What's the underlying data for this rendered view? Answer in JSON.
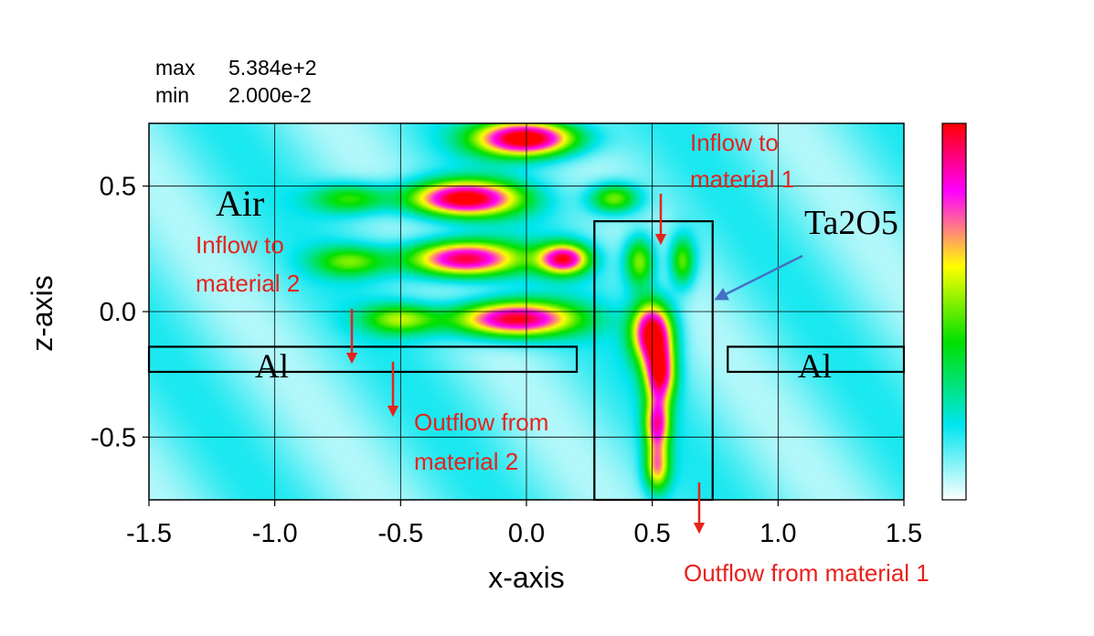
{
  "header": {
    "max_label": "max",
    "max_value": "5.384e+2",
    "min_label": "min",
    "min_value": "2.000e-2"
  },
  "chart_data": {
    "type": "heatmap",
    "title": "",
    "xlabel": "x-axis",
    "ylabel": "z-axis",
    "xlim": [
      -1.5,
      1.5
    ],
    "ylim": [
      -0.75,
      0.75
    ],
    "x_ticks": [
      "-1.5",
      "-1.0",
      "-0.5",
      "0.0",
      "0.5",
      "1.0",
      "1.5"
    ],
    "x_tick_values": [
      -1.5,
      -1.0,
      -0.5,
      0.0,
      0.5,
      1.0,
      1.5
    ],
    "y_ticks": [
      "0.5",
      "0.0",
      "-0.5"
    ],
    "y_tick_values": [
      0.5,
      0.0,
      -0.5
    ],
    "grid": true,
    "value_range": [
      0.02,
      538.4
    ],
    "colormap": [
      "#ffffff",
      "#00e5ee",
      "#00e000",
      "#ffff00",
      "#ff00ff",
      "#ff0000"
    ],
    "hotspots": [
      {
        "x": 0.0,
        "z": 0.69,
        "sx": 0.2,
        "sz": 0.07,
        "v": 1.0
      },
      {
        "x": -0.25,
        "z": 0.45,
        "sx": 0.22,
        "sz": 0.07,
        "v": 0.92
      },
      {
        "x": -0.25,
        "z": 0.21,
        "sx": 0.22,
        "sz": 0.07,
        "v": 0.88
      },
      {
        "x": 0.15,
        "z": 0.21,
        "sx": 0.1,
        "sz": 0.06,
        "v": 0.8
      },
      {
        "x": -0.05,
        "z": -0.03,
        "sx": 0.24,
        "sz": 0.07,
        "v": 0.9
      },
      {
        "x": 0.5,
        "z": -0.08,
        "sx": 0.08,
        "sz": 0.12,
        "v": 0.92
      },
      {
        "x": 0.53,
        "z": -0.25,
        "sx": 0.06,
        "sz": 0.12,
        "v": 0.8
      },
      {
        "x": 0.52,
        "z": -0.45,
        "sx": 0.05,
        "sz": 0.1,
        "v": 0.65
      },
      {
        "x": 0.52,
        "z": -0.62,
        "sx": 0.05,
        "sz": 0.1,
        "v": 0.55
      },
      {
        "x": 0.45,
        "z": 0.2,
        "sx": 0.06,
        "sz": 0.1,
        "v": 0.45
      },
      {
        "x": 0.62,
        "z": 0.2,
        "sx": 0.05,
        "sz": 0.1,
        "v": 0.42
      },
      {
        "x": -0.7,
        "z": 0.45,
        "sx": 0.15,
        "sz": 0.06,
        "v": 0.35
      },
      {
        "x": -0.7,
        "z": 0.2,
        "sx": 0.15,
        "sz": 0.06,
        "v": 0.35
      },
      {
        "x": 0.35,
        "z": 0.45,
        "sx": 0.1,
        "sz": 0.06,
        "v": 0.45
      },
      {
        "x": -0.5,
        "z": -0.03,
        "sx": 0.15,
        "sz": 0.06,
        "v": 0.4
      }
    ],
    "structures": [
      {
        "name": "Al",
        "x0": -1.5,
        "x1": 0.2,
        "z0": -0.24,
        "z1": -0.14
      },
      {
        "name": "Al",
        "x0": 0.8,
        "x1": 1.5,
        "z0": -0.24,
        "z1": -0.14
      },
      {
        "name": "Ta2O5",
        "x0": 0.27,
        "x1": 0.74,
        "z0": -0.75,
        "z1": 0.36
      }
    ]
  },
  "labels": {
    "air": "Air",
    "al_left": "Al",
    "al_right": "Al",
    "ta2o5": "Ta2O5",
    "inflow1_line1": "Inflow to",
    "inflow1_line2": "material 1",
    "inflow2_line1": "Inflow to",
    "inflow2_line2": "material 2",
    "outflow2_line1": "Outflow from",
    "outflow2_line2": "material 2",
    "outflow1": "Outflow from material 1"
  },
  "colors": {
    "annotation": "#e8211c",
    "arrow_blue": "#4472c4"
  }
}
